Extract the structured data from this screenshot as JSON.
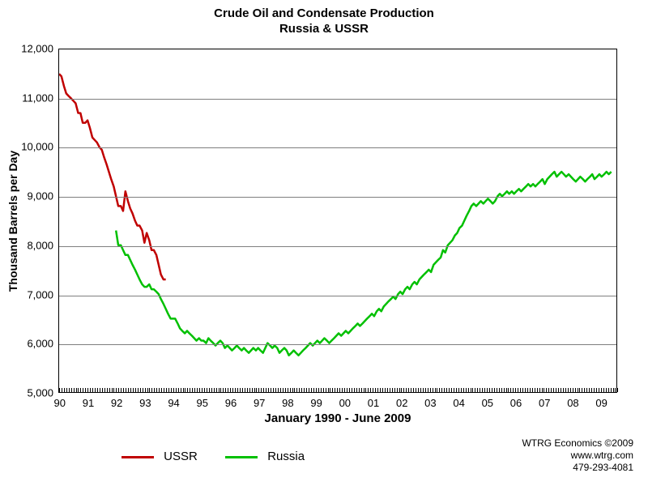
{
  "title_line1": "Crude Oil and Condensate Production",
  "title_line2": "Russia & USSR",
  "chart": {
    "type": "line",
    "background_color": "#ffffff",
    "grid_color": "#7f7f7f",
    "border_color": "#000000",
    "x": {
      "title": "January 1990 - June 2009",
      "min": 1990.0,
      "max": 2009.6,
      "tick_step_years": 1,
      "tick_labels": [
        "90",
        "91",
        "92",
        "93",
        "94",
        "95",
        "96",
        "97",
        "98",
        "99",
        "00",
        "01",
        "02",
        "03",
        "04",
        "05",
        "06",
        "07",
        "08",
        "09"
      ],
      "minor_ticks_per_year": 12,
      "label_fontsize": 13,
      "title_fontsize": 15
    },
    "y": {
      "title": "Thousand Barrels per Day",
      "min": 5000,
      "max": 12000,
      "tick_step": 1000,
      "tick_labels": [
        "5,000",
        "6,000",
        "7,000",
        "8,000",
        "9,000",
        "10,000",
        "11,000",
        "12,000"
      ],
      "label_fontsize": 13,
      "title_fontsize": 14
    },
    "series": [
      {
        "name": "USSR",
        "color": "#c00000",
        "line_width": 2.5,
        "x": [
          1990.0,
          1990.08,
          1990.17,
          1990.25,
          1990.33,
          1990.42,
          1990.5,
          1990.58,
          1990.67,
          1990.75,
          1990.83,
          1990.92,
          1991.0,
          1991.08,
          1991.17,
          1991.25,
          1991.33,
          1991.42,
          1991.5,
          1991.58,
          1991.67,
          1991.75,
          1991.83,
          1991.92,
          1992.0,
          1992.08,
          1992.17,
          1992.25,
          1992.33,
          1992.42,
          1992.5,
          1992.58,
          1992.67,
          1992.75,
          1992.83,
          1992.92,
          1993.0,
          1993.08,
          1993.17,
          1993.25,
          1993.33,
          1993.42,
          1993.5,
          1993.58,
          1993.67,
          1993.75
        ],
        "y": [
          11500,
          11450,
          11250,
          11100,
          11050,
          11000,
          10950,
          10900,
          10700,
          10700,
          10500,
          10500,
          10550,
          10400,
          10200,
          10150,
          10100,
          10000,
          9950,
          9800,
          9650,
          9500,
          9350,
          9200,
          9000,
          8800,
          8800,
          8700,
          9100,
          8900,
          8750,
          8650,
          8500,
          8400,
          8400,
          8300,
          8050,
          8250,
          8100,
          7900,
          7900,
          7800,
          7600,
          7400,
          7300,
          7300
        ]
      },
      {
        "name": "Russia",
        "color": "#00c000",
        "line_width": 2.5,
        "x": [
          1992.0,
          1992.08,
          1992.17,
          1992.25,
          1992.33,
          1992.42,
          1992.5,
          1992.58,
          1992.67,
          1992.75,
          1992.83,
          1992.92,
          1993.0,
          1993.08,
          1993.17,
          1993.25,
          1993.33,
          1993.42,
          1993.5,
          1993.58,
          1993.67,
          1993.75,
          1993.83,
          1993.92,
          1994.0,
          1994.08,
          1994.17,
          1994.25,
          1994.33,
          1994.42,
          1994.5,
          1994.58,
          1994.67,
          1994.75,
          1994.83,
          1994.92,
          1995.0,
          1995.08,
          1995.17,
          1995.25,
          1995.33,
          1995.42,
          1995.5,
          1995.58,
          1995.67,
          1995.75,
          1995.83,
          1995.92,
          1996.0,
          1996.08,
          1996.17,
          1996.25,
          1996.33,
          1996.42,
          1996.5,
          1996.58,
          1996.67,
          1996.75,
          1996.83,
          1996.92,
          1997.0,
          1997.08,
          1997.17,
          1997.25,
          1997.33,
          1997.42,
          1997.5,
          1997.58,
          1997.67,
          1997.75,
          1997.83,
          1997.92,
          1998.0,
          1998.08,
          1998.17,
          1998.25,
          1998.33,
          1998.42,
          1998.5,
          1998.58,
          1998.67,
          1998.75,
          1998.83,
          1998.92,
          1999.0,
          1999.08,
          1999.17,
          1999.25,
          1999.33,
          1999.42,
          1999.5,
          1999.58,
          1999.67,
          1999.75,
          1999.83,
          1999.92,
          2000.0,
          2000.08,
          2000.17,
          2000.25,
          2000.33,
          2000.42,
          2000.5,
          2000.58,
          2000.67,
          2000.75,
          2000.83,
          2000.92,
          2001.0,
          2001.08,
          2001.17,
          2001.25,
          2001.33,
          2001.42,
          2001.5,
          2001.58,
          2001.67,
          2001.75,
          2001.83,
          2001.92,
          2002.0,
          2002.08,
          2002.17,
          2002.25,
          2002.33,
          2002.42,
          2002.5,
          2002.58,
          2002.67,
          2002.75,
          2002.83,
          2002.92,
          2003.0,
          2003.08,
          2003.17,
          2003.25,
          2003.33,
          2003.42,
          2003.5,
          2003.58,
          2003.67,
          2003.75,
          2003.83,
          2003.92,
          2004.0,
          2004.08,
          2004.17,
          2004.25,
          2004.33,
          2004.42,
          2004.5,
          2004.58,
          2004.67,
          2004.75,
          2004.83,
          2004.92,
          2005.0,
          2005.08,
          2005.17,
          2005.25,
          2005.33,
          2005.42,
          2005.5,
          2005.58,
          2005.67,
          2005.75,
          2005.83,
          2005.92,
          2006.0,
          2006.08,
          2006.17,
          2006.25,
          2006.33,
          2006.42,
          2006.5,
          2006.58,
          2006.67,
          2006.75,
          2006.83,
          2006.92,
          2007.0,
          2007.08,
          2007.17,
          2007.25,
          2007.33,
          2007.42,
          2007.5,
          2007.58,
          2007.67,
          2007.75,
          2007.83,
          2007.92,
          2008.0,
          2008.08,
          2008.17,
          2008.25,
          2008.33,
          2008.42,
          2008.5,
          2008.58,
          2008.67,
          2008.75,
          2008.83,
          2008.92,
          2009.0,
          2009.08,
          2009.17,
          2009.25,
          2009.33,
          2009.42
        ],
        "y": [
          8300,
          8000,
          8000,
          7900,
          7800,
          7800,
          7700,
          7600,
          7500,
          7400,
          7300,
          7200,
          7150,
          7150,
          7200,
          7100,
          7100,
          7050,
          7000,
          6900,
          6800,
          6700,
          6600,
          6500,
          6500,
          6500,
          6400,
          6300,
          6250,
          6200,
          6250,
          6200,
          6150,
          6100,
          6050,
          6100,
          6050,
          6050,
          6000,
          6100,
          6050,
          6000,
          5950,
          6000,
          6050,
          6000,
          5900,
          5950,
          5900,
          5850,
          5900,
          5950,
          5900,
          5850,
          5900,
          5850,
          5800,
          5850,
          5900,
          5850,
          5900,
          5850,
          5800,
          5900,
          6000,
          5950,
          5900,
          5950,
          5900,
          5800,
          5850,
          5900,
          5850,
          5750,
          5800,
          5850,
          5800,
          5750,
          5800,
          5850,
          5900,
          5950,
          6000,
          5950,
          6000,
          6050,
          6000,
          6050,
          6100,
          6050,
          6000,
          6050,
          6100,
          6150,
          6200,
          6150,
          6200,
          6250,
          6200,
          6250,
          6300,
          6350,
          6400,
          6350,
          6400,
          6450,
          6500,
          6550,
          6600,
          6550,
          6650,
          6700,
          6650,
          6750,
          6800,
          6850,
          6900,
          6950,
          6900,
          7000,
          7050,
          7000,
          7100,
          7150,
          7100,
          7200,
          7250,
          7200,
          7300,
          7350,
          7400,
          7450,
          7500,
          7450,
          7600,
          7650,
          7700,
          7750,
          7900,
          7850,
          8000,
          8050,
          8100,
          8200,
          8250,
          8350,
          8400,
          8500,
          8600,
          8700,
          8800,
          8850,
          8800,
          8850,
          8900,
          8850,
          8900,
          8950,
          8900,
          8850,
          8900,
          9000,
          9050,
          9000,
          9050,
          9100,
          9050,
          9100,
          9050,
          9100,
          9150,
          9100,
          9150,
          9200,
          9250,
          9200,
          9250,
          9200,
          9250,
          9300,
          9350,
          9250,
          9350,
          9400,
          9450,
          9500,
          9400,
          9450,
          9500,
          9450,
          9400,
          9450,
          9400,
          9350,
          9300,
          9350,
          9400,
          9350,
          9300,
          9350,
          9400,
          9450,
          9350,
          9400,
          9450,
          9400,
          9450,
          9500,
          9450,
          9500
        ]
      }
    ]
  },
  "legend": {
    "items": [
      {
        "label": "USSR",
        "color": "#c00000"
      },
      {
        "label": "Russia",
        "color": "#00c000"
      }
    ],
    "fontsize": 15
  },
  "credit": {
    "line1": "WTRG Economics  ©2009",
    "line2": "www.wtrg.com",
    "line3": "479-293-4081",
    "fontsize": 12
  }
}
